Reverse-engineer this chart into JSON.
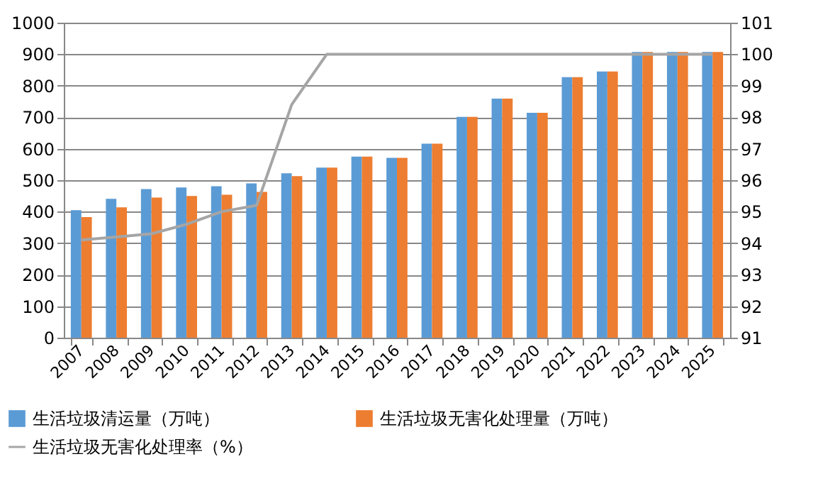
{
  "chart_data": {
    "type": "bar",
    "categories": [
      "2007",
      "2008",
      "2009",
      "2010",
      "2011",
      "2012",
      "2013",
      "2014",
      "2015",
      "2016",
      "2017",
      "2018",
      "2019",
      "2020",
      "2021",
      "2022",
      "2023",
      "2024",
      "2025"
    ],
    "series": [
      {
        "name": "生活垃圾清运量（万吨）",
        "color": "#5b9bd5",
        "values": [
          405,
          441,
          472,
          477,
          481,
          490,
          522,
          540,
          575,
          571,
          616,
          701,
          759,
          714,
          827,
          845,
          907,
          907,
          907
        ]
      },
      {
        "name": "生活垃圾无害化处理量（万吨）",
        "color": "#ed7d31",
        "values": [
          383,
          414,
          445,
          450,
          454,
          463,
          513,
          540,
          575,
          571,
          616,
          701,
          759,
          714,
          827,
          845,
          907,
          907,
          907
        ]
      },
      {
        "name": "生活垃圾无害化处理率（%）",
        "type": "line",
        "axis": "y2",
        "color": "#a5a5a5",
        "values": [
          94.1,
          94.2,
          94.3,
          94.6,
          95.0,
          95.2,
          98.4,
          100,
          100,
          100,
          100,
          100,
          100,
          100,
          100,
          100,
          100,
          100,
          100
        ]
      }
    ],
    "ylim": [
      0,
      1000
    ],
    "yticks": [
      0,
      100,
      200,
      300,
      400,
      500,
      600,
      700,
      800,
      900,
      1000
    ],
    "y2lim": [
      91,
      101
    ],
    "y2ticks": [
      91,
      92,
      93,
      94,
      95,
      96,
      97,
      98,
      99,
      100,
      101
    ],
    "grid": "y",
    "legend": "bottom",
    "marker": "none"
  }
}
